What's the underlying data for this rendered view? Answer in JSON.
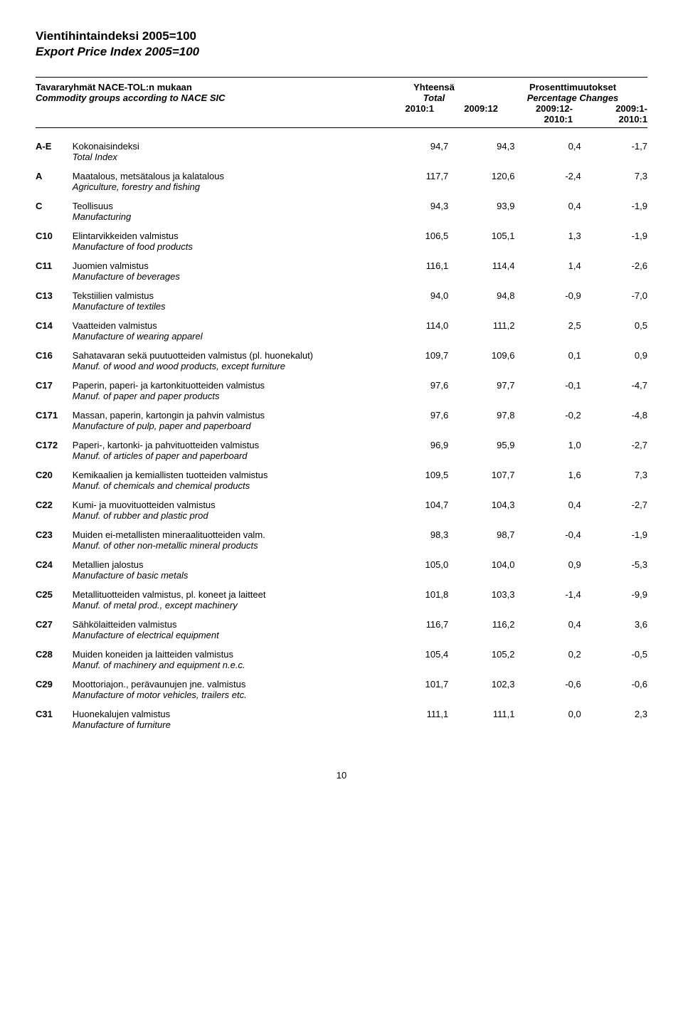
{
  "title_fi": "Vientihintaindeksi 2005=100",
  "title_en": "Export Price Index 2005=100",
  "header": {
    "groups_fi": "Tavararyhmät NACE-TOL:n mukaan",
    "groups_en": "Commodity groups according to NACE SIC",
    "total_fi": "Yhteensä",
    "total_en": "Total",
    "pct_fi": "Prosenttimuutokset",
    "pct_en": "Percentage Changes",
    "col1": "2010:1",
    "col2": "2009:12",
    "col3a": "2009:12-",
    "col3b": "2010:1",
    "col4a": "2009:1-",
    "col4b": "2010:1"
  },
  "rows": [
    {
      "code": "A-E",
      "fi": "Kokonaisindeksi",
      "en": "Total Index",
      "v": [
        "94,7",
        "94,3",
        "0,4",
        "-1,7"
      ]
    },
    {
      "code": "A",
      "fi": "Maatalous, metsätalous ja kalatalous",
      "en": "Agriculture, forestry and fishing",
      "v": [
        "117,7",
        "120,6",
        "-2,4",
        "7,3"
      ]
    },
    {
      "code": "C",
      "fi": "Teollisuus",
      "en": "Manufacturing",
      "v": [
        "94,3",
        "93,9",
        "0,4",
        "-1,9"
      ]
    },
    {
      "code": "C10",
      "fi": "Elintarvikkeiden valmistus",
      "en": "Manufacture of food products",
      "v": [
        "106,5",
        "105,1",
        "1,3",
        "-1,9"
      ]
    },
    {
      "code": "C11",
      "fi": "Juomien valmistus",
      "en": "Manufacture of beverages",
      "v": [
        "116,1",
        "114,4",
        "1,4",
        "-2,6"
      ]
    },
    {
      "code": "C13",
      "fi": "Tekstiilien valmistus",
      "en": "Manufacture of textiles",
      "v": [
        "94,0",
        "94,8",
        "-0,9",
        "-7,0"
      ]
    },
    {
      "code": "C14",
      "fi": "Vaatteiden valmistus",
      "en": "Manufacture of wearing apparel",
      "v": [
        "114,0",
        "111,2",
        "2,5",
        "0,5"
      ]
    },
    {
      "code": "C16",
      "fi": "Sahatavaran sekä puutuotteiden valmistus (pl. huonekalut)",
      "en": "Manuf. of wood and wood products, except furniture",
      "v": [
        "109,7",
        "109,6",
        "0,1",
        "0,9"
      ]
    },
    {
      "code": "C17",
      "fi": "Paperin, paperi- ja kartonkituotteiden valmistus",
      "en": "Manuf. of paper and paper products",
      "v": [
        "97,6",
        "97,7",
        "-0,1",
        "-4,7"
      ]
    },
    {
      "code": "C171",
      "fi": "Massan, paperin, kartongin ja pahvin valmistus",
      "en": "Manufacture of pulp, paper and paperboard",
      "v": [
        "97,6",
        "97,8",
        "-0,2",
        "-4,8"
      ]
    },
    {
      "code": "C172",
      "fi": "Paperi-, kartonki- ja pahvituotteiden valmistus",
      "en": "Manuf. of articles of paper and paperboard",
      "v": [
        "96,9",
        "95,9",
        "1,0",
        "-2,7"
      ]
    },
    {
      "code": "C20",
      "fi": "Kemikaalien ja kemiallisten tuotteiden valmistus",
      "en": "Manuf. of chemicals and chemical products",
      "v": [
        "109,5",
        "107,7",
        "1,6",
        "7,3"
      ]
    },
    {
      "code": "C22",
      "fi": "Kumi- ja muovituotteiden valmistus",
      "en": "Manuf. of rubber and plastic prod",
      "v": [
        "104,7",
        "104,3",
        "0,4",
        "-2,7"
      ]
    },
    {
      "code": "C23",
      "fi": "Muiden ei-metallisten mineraalituotteiden valm.",
      "en": "Manuf. of other non-metallic mineral products",
      "v": [
        "98,3",
        "98,7",
        "-0,4",
        "-1,9"
      ]
    },
    {
      "code": "C24",
      "fi": "Metallien jalostus",
      "en": "Manufacture of basic metals",
      "v": [
        "105,0",
        "104,0",
        "0,9",
        "-5,3"
      ]
    },
    {
      "code": "C25",
      "fi": "Metallituotteiden valmistus, pl. koneet ja laitteet",
      "en": "Manuf. of metal prod., except machinery",
      "v": [
        "101,8",
        "103,3",
        "-1,4",
        "-9,9"
      ]
    },
    {
      "code": "C27",
      "fi": "Sähkölaitteiden valmistus",
      "en": "Manufacture of electrical equipment",
      "v": [
        "116,7",
        "116,2",
        "0,4",
        "3,6"
      ]
    },
    {
      "code": "C28",
      "fi": "Muiden koneiden ja laitteiden valmistus",
      "en": "Manuf. of machinery and equipment n.e.c.",
      "v": [
        "105,4",
        "105,2",
        "0,2",
        "-0,5"
      ]
    },
    {
      "code": "C29",
      "fi": "Moottoriajon., perävaunujen jne. valmistus",
      "en": "Manufacture of motor vehicles, trailers etc.",
      "v": [
        "101,7",
        "102,3",
        "-0,6",
        "-0,6"
      ]
    },
    {
      "code": "C31",
      "fi": "Huonekalujen valmistus",
      "en": "Manufacture of furniture",
      "v": [
        "111,1",
        "111,1",
        "0,0",
        "2,3"
      ]
    }
  ],
  "page_number": "10"
}
